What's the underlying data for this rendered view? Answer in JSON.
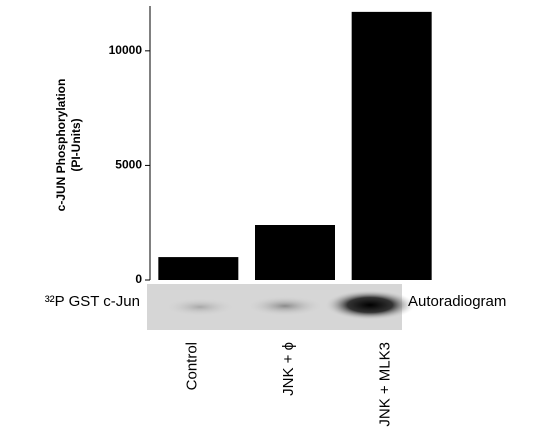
{
  "chart_data": {
    "type": "bar",
    "ylabel": "c-JUN Phosphorylation",
    "ylabel_unit": "(PI-Units)",
    "categories": [
      "Control",
      "JNK + ϕ",
      "JNK + MLK3"
    ],
    "values": [
      1000,
      2400,
      11700
    ],
    "color": "#000000",
    "ylim": [
      0,
      12000
    ],
    "yticks": [
      0,
      5000,
      10000
    ],
    "blot_label": "³²P GST c-Jun",
    "blot_title": "Autoradiogram"
  }
}
